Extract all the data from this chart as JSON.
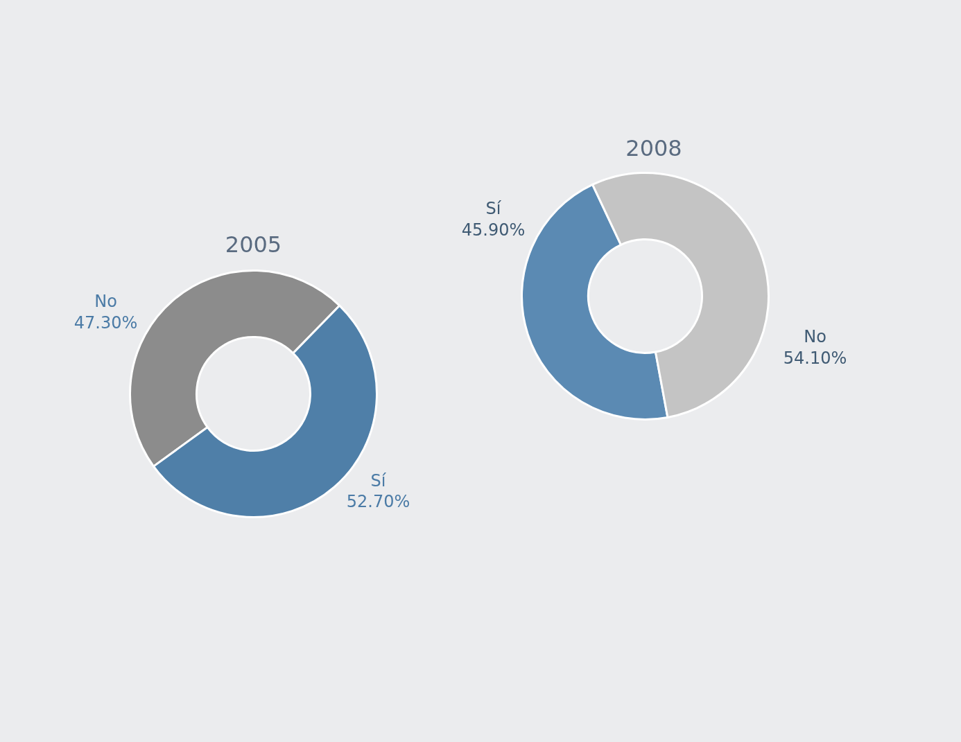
{
  "chart_data": [
    {
      "type": "donut",
      "title": "2005",
      "categories": [
        "No",
        "Sí"
      ],
      "values": [
        47.3,
        52.7
      ],
      "colors": [
        "#8c8c8c",
        "#4f7fa8"
      ],
      "value_labels": [
        "47.30%",
        "52.70%"
      ]
    },
    {
      "type": "donut",
      "title": "2008",
      "categories": [
        "Sí",
        "No"
      ],
      "values": [
        45.9,
        54.1
      ],
      "colors": [
        "#5b8ab3",
        "#c4c4c4"
      ],
      "value_labels": [
        "45.90%",
        "54.10%"
      ]
    }
  ]
}
